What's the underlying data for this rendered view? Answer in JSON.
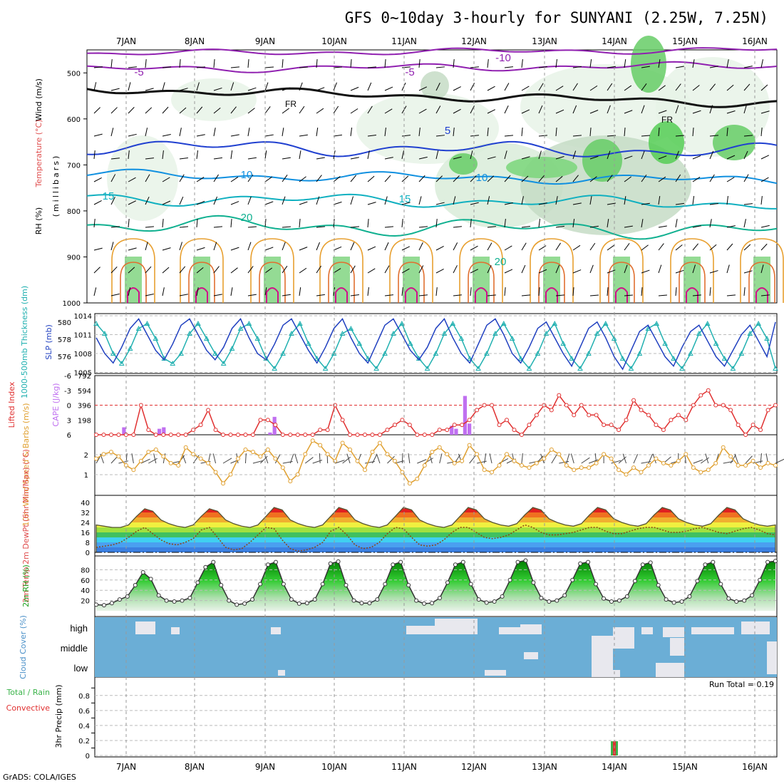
{
  "header": {
    "title": "GFS 0~10day 3-hourly for SUNYANI (2.25W, 7.25N)",
    "credit": "GrADS: COLA/IGES"
  },
  "dates": [
    "7JAN",
    "8JAN",
    "9JAN",
    "10JAN",
    "11JAN",
    "12JAN",
    "13JAN",
    "14JAN",
    "15JAN",
    "16JAN"
  ],
  "colors": {
    "temp_label": "#e05050",
    "wind_label": "#000000",
    "rh_green": "#33cc33",
    "slp": "#2040c0",
    "thickness": "#20b0b0",
    "lifted": "#e03030",
    "cape": "#c070f0",
    "wind10": "#e0a030",
    "cloud": "#6baed6",
    "precip_total": "#3cb44b",
    "precip_conv": "#e03030"
  },
  "panel1": {
    "ylabel_rh": "RH (%)",
    "ylabel_temp": "Temperature (°C)",
    "ylabel_wind": "Wind (m/s)",
    "ylabel_mb": "(millibars)",
    "levels": [
      500,
      600,
      700,
      800,
      900,
      1000
    ],
    "contour_labels": [
      "-10",
      "-5",
      "-5",
      "FR",
      "FR",
      "5",
      "10",
      "10",
      "15",
      "15",
      "20",
      "20"
    ]
  },
  "panel2": {
    "ylabel_left": "1000-500mb Thickness (dm)",
    "ylabel_right": "SLP (mb)",
    "thickness_ticks": [
      "580",
      "578",
      "576"
    ],
    "slp_ticks": [
      "1014",
      "1011",
      "1008",
      "1005"
    ]
  },
  "panel3": {
    "ylabel_left": "Lifted Index",
    "ylabel_right": "CAPE (J/kg)",
    "li_ticks": [
      "-6",
      "-3",
      "0",
      "3",
      "6"
    ],
    "cape_ticks": [
      "792",
      "594",
      "396",
      "198"
    ]
  },
  "panel4": {
    "ylabel": "10m Wind Speed & Barbs (m/s)",
    "ticks": [
      "2",
      "1"
    ]
  },
  "panel5": {
    "ylabel": "2m Temp 2m DewPt (6hr Min/Max) (°C)",
    "ticks": [
      "40",
      "32",
      "24",
      "16",
      "8",
      "0"
    ]
  },
  "panel6": {
    "ylabel": "2m RH (%)",
    "ticks": [
      "80",
      "60",
      "40",
      "20"
    ]
  },
  "panel7": {
    "ylabel": "Cloud Cover (%)",
    "levels": [
      "high",
      "middle",
      "low"
    ]
  },
  "panel8": {
    "ylabel_left": "Total / Rain",
    "ylabel_conv": "Convective",
    "ylabel": "3hr Precip (mm)",
    "ticks": [
      "0.8",
      "0.6",
      "0.4",
      "0.2",
      "0"
    ],
    "run_total": "Run Total = 0.19"
  },
  "chart_data": [
    {
      "type": "line",
      "title": "1000-500mb Thickness / SLP",
      "series": [
        {
          "name": "1000-500mb Thickness (dm)",
          "values": [
            580,
            579,
            577,
            576,
            577.5,
            579.5,
            580,
            578.5,
            576.5,
            576,
            577,
            579,
            580,
            578.5,
            577,
            576,
            577.5,
            579.5,
            580,
            578.5,
            576.5,
            575.5,
            577,
            579,
            580,
            578,
            576.5,
            575.5,
            577,
            579,
            579.5,
            578,
            576.5,
            575.5,
            577,
            579,
            580,
            578,
            576.5,
            575.5,
            577,
            579,
            580,
            578.5,
            576.5,
            575.5,
            577,
            579,
            580,
            578.5,
            576.5,
            575.5,
            577,
            579,
            580,
            578,
            576.5,
            575.5,
            577,
            579,
            580,
            578.5,
            576.5,
            575.5,
            577,
            579.5,
            580,
            578,
            576.5,
            575.5,
            577,
            579,
            580,
            578,
            576.5,
            575.5,
            577,
            579,
            580,
            578.5,
            575.5
          ]
        },
        {
          "name": "SLP (mb)",
          "values": [
            1010.5,
            1008,
            1006.5,
            1009,
            1012,
            1013.5,
            1011,
            1008.5,
            1007,
            1009.5,
            1012.5,
            1013.5,
            1011,
            1008.5,
            1007,
            1009,
            1012,
            1013.5,
            1010.5,
            1008,
            1007,
            1009.5,
            1012.5,
            1013.5,
            1011,
            1008.5,
            1006.5,
            1009,
            1012,
            1013.5,
            1010.5,
            1008,
            1006.5,
            1009.5,
            1012.5,
            1013.5,
            1011,
            1008.5,
            1007,
            1009,
            1012,
            1013.5,
            1010.5,
            1008,
            1006.5,
            1009.5,
            1012.5,
            1013.5,
            1011,
            1008,
            1006.5,
            1009,
            1012,
            1013,
            1010.5,
            1008,
            1006,
            1009,
            1012,
            1013,
            1010.5,
            1007.5,
            1005.5,
            1008.5,
            1011.5,
            1012.5,
            1010,
            1007.5,
            1006,
            1009,
            1011.5,
            1012.5,
            1010,
            1007.5,
            1006,
            1008.5,
            1011,
            1012.5,
            1010,
            1007.5,
            1013
          ]
        }
      ]
    },
    {
      "type": "bar",
      "title": "Lifted Index / CAPE",
      "series": [
        {
          "name": "CAPE (J/kg)",
          "values": [
            0,
            0,
            0,
            0,
            0,
            0,
            100,
            0,
            0,
            0,
            0,
            0,
            0,
            0,
            80,
            100,
            0,
            0,
            0,
            0,
            0,
            0,
            0,
            0,
            0,
            0,
            0,
            0,
            0,
            0,
            0,
            0,
            0,
            0,
            0,
            0,
            0,
            0,
            0,
            30,
            240,
            0,
            0,
            0,
            0,
            0,
            0,
            0,
            0,
            0,
            0,
            0,
            0,
            0,
            0,
            0,
            0,
            0,
            0,
            0,
            0,
            0,
            0,
            0,
            0,
            0,
            0,
            0,
            0,
            0,
            0,
            0,
            0,
            0,
            0,
            0,
            0,
            0,
            0,
            0,
            120,
            80,
            0,
            520,
            150,
            0,
            0,
            0,
            0,
            0,
            0,
            0,
            0,
            0,
            0,
            0,
            0,
            0,
            0,
            0,
            0,
            0,
            0,
            0,
            0,
            0,
            0,
            0,
            0,
            0,
            0,
            0,
            0,
            0,
            0,
            0,
            0,
            0,
            0,
            0,
            0,
            0,
            0,
            0,
            0,
            0,
            0,
            0,
            0,
            0,
            0,
            0,
            0,
            0,
            0,
            0,
            0,
            0,
            0,
            0,
            0,
            0,
            0,
            0,
            0,
            0,
            0,
            0,
            0,
            0,
            0,
            0,
            0,
            0
          ]
        },
        {
          "name": "Lifted Index",
          "values": [
            6,
            6,
            6,
            6,
            6,
            6,
            0,
            5,
            6,
            6,
            6,
            6,
            6,
            5,
            4,
            1,
            5,
            6,
            6,
            6,
            6,
            6,
            3,
            3,
            4,
            6,
            6,
            6,
            6,
            6,
            5,
            5,
            0,
            3,
            6,
            6,
            6,
            6,
            6,
            5,
            4,
            3,
            4,
            6,
            6,
            6,
            5,
            5,
            4,
            4,
            3,
            1,
            0,
            0,
            4,
            3,
            5,
            6,
            4,
            2,
            0,
            1,
            -2,
            0,
            2,
            0,
            2,
            2,
            4,
            4,
            5,
            3,
            -1,
            1,
            2,
            4,
            5,
            3,
            2,
            3,
            0,
            -2,
            -3,
            0,
            0,
            1,
            4,
            6,
            4,
            5,
            1,
            0
          ]
        }
      ]
    },
    {
      "type": "line",
      "title": "10m Wind Speed",
      "series": [
        {
          "name": "10m Wind Speed (m/s)",
          "values": [
            1.6,
            1.8,
            1.9,
            1.7,
            1.3,
            1.1,
            1.5,
            1.9,
            2.0,
            1.7,
            1.4,
            1.3,
            2.1,
            1.8,
            1.6,
            1.4,
            1.0,
            0.5,
            0.9,
            1.6,
            2.0,
            1.9,
            1.7,
            2.0,
            1.6,
            1.2,
            0.6,
            0.9,
            1.8,
            2.4,
            2.2,
            1.8,
            1.5,
            2.3,
            2.0,
            1.5,
            1.1,
            1.9,
            2.3,
            1.8,
            1.5,
            1.0,
            0.5,
            0.7,
            1.3,
            1.9,
            2.1,
            1.8,
            1.4,
            1.5,
            2.2,
            1.8,
            1.1,
            1.0,
            1.3,
            1.8,
            1.5,
            1.3,
            1.2,
            1.4,
            1.6,
            2.0,
            1.8,
            1.3,
            1.1,
            1.2,
            1.2,
            1.4,
            1.8,
            1.6,
            1.1,
            0.9,
            1.2,
            1.0,
            1.3,
            1.6,
            1.4,
            1.3,
            1.5,
            1.8,
            1.2,
            1.0,
            1.1,
            1.4,
            2.1,
            1.7,
            1.3,
            1.3,
            1.5,
            1.2,
            1.4,
            1.3
          ]
        }
      ]
    },
    {
      "type": "area",
      "title": "2m Temp / DewPt",
      "series": [
        {
          "name": "2m Temp (°C)",
          "values": [
            22,
            21,
            20,
            20,
            22,
            29,
            35,
            33,
            26,
            23,
            21,
            20,
            22,
            29,
            35,
            33,
            26,
            23,
            21,
            20,
            22,
            29,
            36,
            34,
            26,
            23,
            21,
            20,
            22,
            29,
            36,
            34,
            26,
            23,
            21,
            20,
            22,
            29,
            36,
            34,
            26,
            23,
            21,
            20,
            22,
            29,
            36,
            34,
            27,
            24,
            22,
            21,
            23,
            30,
            36,
            34,
            27,
            24,
            22,
            21,
            23,
            30,
            36,
            34,
            27,
            24,
            22,
            21,
            23,
            30,
            36,
            34,
            27,
            24,
            22,
            21,
            23,
            30,
            36,
            34,
            27,
            24,
            22,
            21,
            22
          ]
        },
        {
          "name": "2m DewPt (°C)",
          "values": [
            4,
            5,
            6,
            8,
            12,
            17,
            20,
            15,
            10,
            7,
            6,
            8,
            11,
            18,
            20,
            12,
            4,
            2,
            3,
            8,
            14,
            20,
            19,
            10,
            3,
            1,
            2,
            4,
            8,
            17,
            20,
            14,
            6,
            3,
            4,
            8,
            15,
            20,
            19,
            12,
            6,
            5,
            6,
            10,
            16,
            20,
            20,
            16,
            12,
            11,
            12,
            14,
            18,
            22,
            20,
            16,
            14,
            14,
            15,
            16,
            18,
            20,
            20,
            17,
            15,
            15,
            17,
            19,
            20,
            20,
            18,
            16,
            16,
            17,
            19,
            20,
            18,
            16,
            15,
            17,
            19,
            20,
            18,
            15,
            14
          ]
        }
      ]
    },
    {
      "type": "area",
      "title": "2m RH",
      "series": [
        {
          "name": "2m RH (%)",
          "values": [
            12,
            11,
            15,
            22,
            28,
            50,
            75,
            62,
            30,
            20,
            18,
            20,
            25,
            55,
            85,
            95,
            50,
            20,
            12,
            14,
            22,
            52,
            90,
            95,
            52,
            22,
            14,
            15,
            22,
            52,
            92,
            96,
            50,
            20,
            15,
            15,
            22,
            52,
            90,
            95,
            50,
            20,
            14,
            15,
            25,
            55,
            90,
            95,
            52,
            22,
            16,
            18,
            28,
            60,
            95,
            98,
            55,
            25,
            18,
            20,
            30,
            60,
            92,
            95,
            52,
            24,
            18,
            20,
            28,
            58,
            90,
            94,
            50,
            22,
            16,
            18,
            28,
            58,
            90,
            95,
            52,
            24,
            18,
            20,
            30,
            60,
            95,
            97
          ]
        }
      ]
    },
    {
      "type": "bar",
      "title": "3hr Precip",
      "series": [
        {
          "name": "Total / Rain",
          "values": [
            0.19
          ]
        },
        {
          "name": "Convective",
          "values": [
            0.19
          ]
        }
      ],
      "categories": [
        "14JAN"
      ]
    }
  ]
}
